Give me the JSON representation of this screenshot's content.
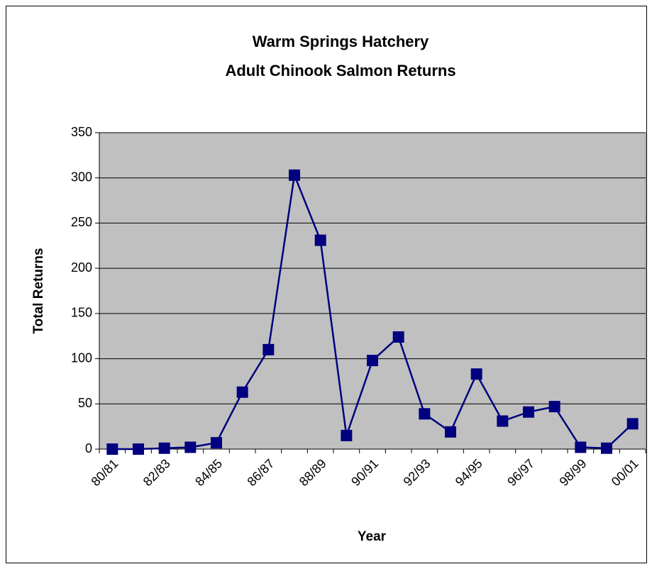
{
  "chart_data": {
    "type": "line",
    "title": [
      "Warm Springs Hatchery",
      "Adult Chinook Salmon Returns"
    ],
    "x_label": "Year",
    "y_label": "Total Returns",
    "categories": [
      "80/81",
      null,
      "82/83",
      null,
      "84/85",
      null,
      "86/87",
      null,
      "88/89",
      null,
      "90/91",
      null,
      "92/93",
      null,
      "94/95",
      null,
      "96/97",
      null,
      "98/99",
      null,
      "00/01"
    ],
    "series": [
      {
        "name": "Total Returns",
        "color": "#000080",
        "values": [
          0,
          0,
          1,
          2,
          7,
          63,
          110,
          303,
          231,
          15,
          98,
          124,
          39,
          19,
          83,
          31,
          41,
          47,
          2,
          1,
          28
        ]
      }
    ],
    "ylim": [
      0,
      350
    ],
    "yticks": [
      0,
      50,
      100,
      150,
      200,
      250,
      300,
      350
    ],
    "grid": true,
    "plot_background": "#c0c0c0"
  }
}
